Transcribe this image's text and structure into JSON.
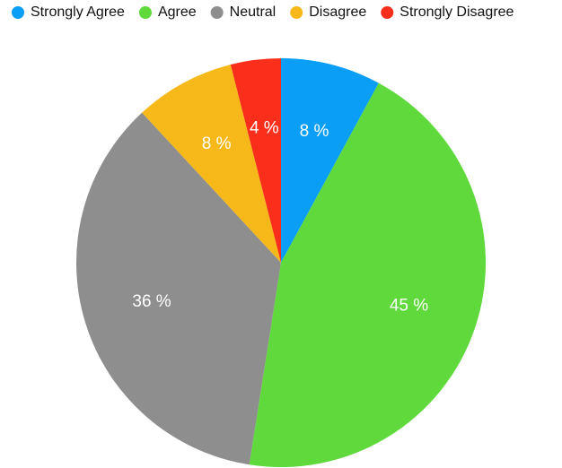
{
  "chart_data": {
    "type": "pie",
    "categories": [
      "Strongly Agree",
      "Agree",
      "Neutral",
      "Disagree",
      "Strongly Disagree"
    ],
    "values": [
      8,
      45,
      36,
      8,
      4
    ],
    "value_labels": [
      "8 %",
      "45 %",
      "36 %",
      "8 %",
      "4 %"
    ],
    "colors": [
      "#0a9ef6",
      "#5fd93b",
      "#8e8e8e",
      "#f7b81a",
      "#f92f1b"
    ],
    "legend": "top"
  }
}
